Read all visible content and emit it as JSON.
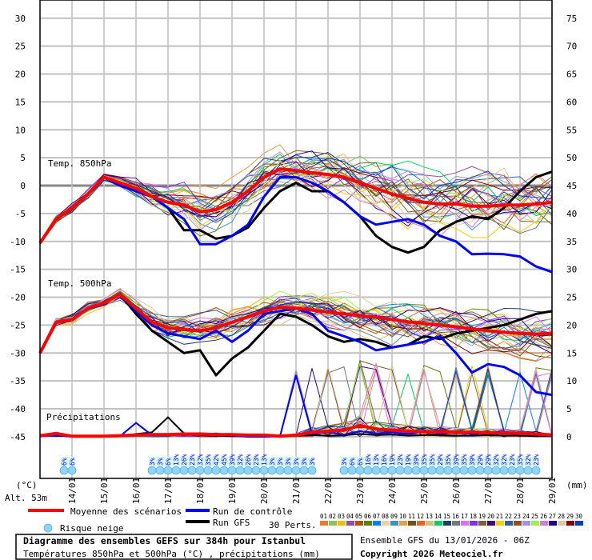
{
  "chart_data": {
    "type": "line",
    "title": "Diagramme des ensembles GEFS sur 384h pour Istanbul",
    "subtitle": "Températures 850hPa et 500hPa (°C) , précipitations (mm)",
    "run_info": "Ensemble GFS du 13/01/2026 - 06Z",
    "copyright": "Copyright 2026 Meteociel.fr",
    "altitude": "Alt. 53m",
    "left_unit": "(°C)",
    "right_unit": "(mm)",
    "left_ticks": [
      30,
      25,
      20,
      15,
      10,
      5,
      0,
      -5,
      -10,
      -15,
      -20,
      -25,
      -30,
      -35,
      -40,
      -45
    ],
    "right_ticks": [
      75,
      70,
      65,
      60,
      55,
      50,
      45,
      40,
      35,
      30,
      25,
      20,
      15,
      10,
      5,
      0
    ],
    "ylim_temp": [
      -45,
      30
    ],
    "ylim_precip": [
      0,
      75
    ],
    "x_dates": [
      "14/01",
      "15/01",
      "16/01",
      "17/01",
      "18/01",
      "19/01",
      "20/01",
      "21/01",
      "22/01",
      "23/01",
      "24/01",
      "25/01",
      "26/01",
      "27/01",
      "28/01",
      "29/01"
    ],
    "time_step_hours": 12,
    "grid": true,
    "panel_labels": {
      "t850": "Temp. 850hPa",
      "t500": "Temp. 500hPa",
      "precip": "Précipitations"
    },
    "series": {
      "t850_mean": [
        -10.3,
        -6,
        -4,
        -1.5,
        1.5,
        0.5,
        -0.5,
        -2,
        -3,
        -3.5,
        -4.7,
        -4.3,
        -3,
        -1,
        1.5,
        3,
        2.7,
        2.3,
        2,
        1.5,
        0.5,
        -0.5,
        -1.5,
        -2.3,
        -3,
        -3.3,
        -3.3,
        -3.7,
        -3.7,
        -3.5,
        -3.5,
        -3.3,
        -3
      ],
      "t850_control": [
        -10.3,
        -6,
        -4,
        -1.5,
        1.5,
        0,
        -1,
        -2,
        -4,
        -6,
        -10.5,
        -10.5,
        -9,
        -7,
        -2,
        1.5,
        1.5,
        0.5,
        -1,
        -3,
        -5.5,
        -7,
        -6.5,
        -6,
        -7,
        -9,
        -10,
        -12.3,
        -12.2,
        -12.3,
        -12.7,
        -14.5,
        -15.5
      ],
      "t850_gfs": [
        -10.3,
        -6,
        -4,
        -1.5,
        1.5,
        0,
        -1,
        -2,
        -4,
        -8,
        -8,
        -9.5,
        -9,
        -7.5,
        -4,
        -1,
        0.5,
        -1,
        -1,
        -3,
        -5.5,
        -9,
        -11,
        -12,
        -11,
        -8,
        -6.5,
        -5.5,
        -6,
        -4,
        -1,
        1.5,
        2.5
      ],
      "t500_mean": [
        -30,
        -24.5,
        -24,
        -22,
        -21,
        -19.5,
        -22,
        -24.5,
        -25.5,
        -25.8,
        -26,
        -25.5,
        -24.5,
        -23.5,
        -22.5,
        -21.8,
        -22,
        -22.3,
        -22.7,
        -23,
        -23.3,
        -23.6,
        -24,
        -24.4,
        -24.7,
        -25,
        -25.3,
        -25.7,
        -26,
        -26.3,
        -26.5,
        -26.6,
        -26.5
      ],
      "t500_control": [
        -30,
        -24.5,
        -24,
        -22,
        -21,
        -19.5,
        -22.5,
        -25,
        -26.5,
        -27,
        -27.5,
        -26,
        -28,
        -26,
        -23,
        -22.5,
        -22,
        -23,
        -26,
        -27,
        -28,
        -29.5,
        -29,
        -28.5,
        -28,
        -27,
        -30,
        -33.5,
        -32,
        -32.5,
        -34,
        -37,
        -37.5
      ],
      "t500_gfs": [
        -30,
        -24.5,
        -24,
        -22,
        -21,
        -19.5,
        -23,
        -26,
        -28,
        -30,
        -29.5,
        -34,
        -31,
        -29,
        -26,
        -23,
        -23.5,
        -25,
        -27,
        -28,
        -27.5,
        -28,
        -29,
        -28.5,
        -27,
        -27.5,
        -26.5,
        -26,
        -25.5,
        -25,
        -24,
        -23,
        -22.5
      ],
      "precip_mean": [
        0.2,
        0.6,
        0.1,
        0.1,
        0.1,
        0.2,
        0.3,
        0.4,
        0.4,
        0.5,
        0.5,
        0.4,
        0.4,
        0.3,
        0.3,
        0.1,
        0.3,
        0.8,
        1,
        1.2,
        2,
        1.4,
        1.2,
        1,
        0.9,
        0.9,
        0.8,
        0.8,
        0.7,
        0.7,
        0.6,
        0.5,
        0.3
      ],
      "precip_control": [
        0.1,
        0.3,
        0,
        0,
        0,
        0.1,
        2.5,
        0.3,
        0.5,
        0.3,
        0.4,
        0.6,
        0.2,
        0,
        0,
        0.1,
        11,
        0.5,
        0.8,
        0.4,
        1,
        0.6,
        0.8,
        0.5,
        0.9,
        0.6,
        0.8,
        0.5,
        0.7,
        0.6,
        0.8,
        0.4,
        0.5
      ],
      "precip_gfs": [
        0.1,
        0.3,
        0,
        0,
        0,
        0.2,
        0.5,
        0.8,
        3.5,
        0.6,
        0.3,
        0.2,
        0.1,
        0.1,
        0,
        0.1,
        0.2,
        0.3,
        0.2,
        0.3,
        0.5,
        0.3,
        0.4,
        0.2,
        0.3,
        0.3,
        0.2,
        0.2,
        0.3,
        0.2,
        0.2,
        0.1,
        0.1
      ]
    },
    "ensemble_spread_850": [
      0.3,
      0.8,
      1,
      1,
      0.8,
      1,
      1.5,
      2,
      2.5,
      3,
      3.5,
      3.5,
      3.5,
      3.5,
      3.5,
      3.5,
      3.5,
      3.5,
      4,
      4,
      4.5,
      4.5,
      5,
      5,
      5,
      5,
      5,
      5,
      5,
      5,
      5,
      5,
      5
    ],
    "ensemble_spread_500": [
      0.3,
      0.8,
      1,
      1,
      0.8,
      1,
      1.5,
      2,
      2.5,
      2.5,
      2.5,
      2.5,
      2.5,
      2.5,
      2.5,
      2.5,
      2.5,
      2.5,
      3,
      3,
      3,
      3,
      3.5,
      3.5,
      3.5,
      3.5,
      3.5,
      3.5,
      3.5,
      3.5,
      3.5,
      3.5,
      3.5
    ]
  },
  "snow_risk": {
    "label": "Risque neige",
    "groups": [
      {
        "start_step": 3,
        "values": [
          "6%",
          "6%"
        ]
      },
      {
        "start_step": 14,
        "values": [
          "3%",
          "3%",
          "6%",
          "13%",
          "26%",
          "23%",
          "32%",
          "35%",
          "42%",
          "45%",
          "39%",
          "32%",
          "26%",
          "23%",
          "13%",
          "3%",
          "3%",
          "3%",
          "3%",
          "3%",
          "3%"
        ]
      },
      {
        "start_step": 38,
        "values": [
          "3%",
          "6%",
          "6%",
          "16%",
          "13%",
          "16%",
          "19%",
          "23%",
          "19%",
          "39%",
          "35%",
          "35%",
          "29%",
          "35%",
          "39%",
          "35%",
          "39%",
          "29%",
          "29%",
          "32%",
          "32%",
          "23%",
          "35%",
          "32%",
          "23%"
        ]
      }
    ]
  },
  "legend": {
    "mean": "Moyenne des scénarios",
    "control": "Run de contrôle",
    "gfs": "Run GFS",
    "perts": "30 Perts.",
    "pert_numbers": [
      "01",
      "02",
      "03",
      "04",
      "05",
      "06",
      "07",
      "08",
      "09",
      "10",
      "11",
      "12",
      "13",
      "14",
      "15",
      "16",
      "17",
      "18",
      "19",
      "20",
      "21",
      "22",
      "23",
      "24",
      "25",
      "26",
      "27",
      "28",
      "29",
      "30"
    ],
    "pert_colors": [
      "#e87d2e",
      "#8cc060",
      "#f0c000",
      "#9050a0",
      "#b05000",
      "#608000",
      "#0080ff",
      "#e8d0a8",
      "#4090c0",
      "#e0a050",
      "#705020",
      "#f06020",
      "#d0c080",
      "#00d060",
      "#204060",
      "#707880",
      "#e070f0",
      "#8030f0",
      "#806030",
      "#400080",
      "#f0d000",
      "#3060a0",
      "#905020",
      "#a090f0",
      "#a0f040",
      "#d080d0",
      "#200090",
      "#e0c8a8",
      "#800000",
      "#0040c0"
    ],
    "mean_color": "#ff0000",
    "control_color": "#0000ff",
    "gfs_color": "#000000"
  }
}
